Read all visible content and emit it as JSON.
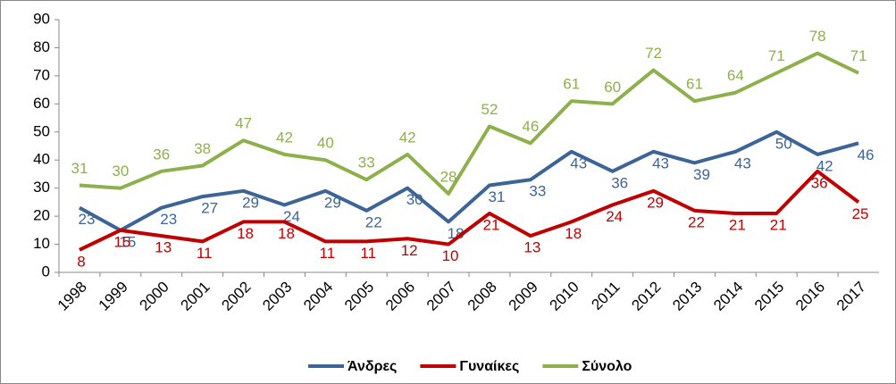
{
  "chart_data": {
    "type": "line",
    "categories": [
      "1998",
      "1999",
      "2000",
      "2001",
      "2002",
      "2003",
      "2004",
      "2005",
      "2006",
      "2007",
      "2008",
      "2009",
      "2010",
      "2011",
      "2012",
      "2013",
      "2014",
      "2015",
      "2016",
      "2017"
    ],
    "series": [
      {
        "name": "Άνδρες",
        "color": "#3c6496",
        "values": [
          23,
          15,
          23,
          27,
          29,
          24,
          29,
          22,
          30,
          18,
          31,
          33,
          43,
          36,
          43,
          39,
          43,
          50,
          42,
          46
        ]
      },
      {
        "name": "Γυναίκες",
        "color": "#c00000",
        "values": [
          8,
          15,
          13,
          11,
          18,
          18,
          11,
          11,
          12,
          10,
          21,
          13,
          18,
          24,
          29,
          22,
          21,
          21,
          36,
          25
        ]
      },
      {
        "name": "Σύνολο",
        "color": "#8db04a",
        "values": [
          31,
          30,
          36,
          38,
          47,
          42,
          40,
          33,
          42,
          28,
          52,
          46,
          61,
          60,
          72,
          61,
          64,
          71,
          78,
          71
        ]
      }
    ],
    "ylim": [
      0,
      90
    ],
    "yticks": [
      0,
      10,
      20,
      30,
      40,
      50,
      60,
      70,
      80,
      90
    ],
    "legend": "bottom"
  }
}
